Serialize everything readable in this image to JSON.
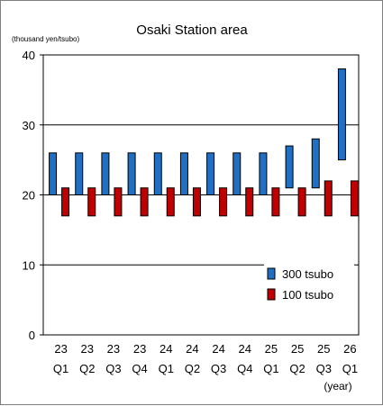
{
  "chart_data": {
    "type": "bar",
    "subtype": "floating-range",
    "title": "Osaki Station area",
    "ylabel": "(thousand yen/tsubo)",
    "xlabel": "(year)",
    "ylim": [
      0,
      40
    ],
    "yticks": [
      0,
      10,
      20,
      30,
      40
    ],
    "grid": true,
    "legend_position": "bottom-right",
    "categories": [
      {
        "year": "23",
        "quarter": "Q1"
      },
      {
        "year": "23",
        "quarter": "Q2"
      },
      {
        "year": "23",
        "quarter": "Q3"
      },
      {
        "year": "23",
        "quarter": "Q4"
      },
      {
        "year": "24",
        "quarter": "Q1"
      },
      {
        "year": "24",
        "quarter": "Q2"
      },
      {
        "year": "24",
        "quarter": "Q3"
      },
      {
        "year": "24",
        "quarter": "Q4"
      },
      {
        "year": "25",
        "quarter": "Q1"
      },
      {
        "year": "25",
        "quarter": "Q2"
      },
      {
        "year": "25",
        "quarter": "Q3"
      },
      {
        "year": "26",
        "quarter": "Q1"
      }
    ],
    "series": [
      {
        "name": "300 tsubo",
        "color": "#1f6fc4",
        "low": [
          20,
          20,
          20,
          20,
          20,
          20,
          20,
          20,
          20,
          21,
          21,
          25
        ],
        "high": [
          26,
          26,
          26,
          26,
          26,
          26,
          26,
          26,
          26,
          27,
          28,
          38
        ]
      },
      {
        "name": "100 tsubo",
        "color": "#c00000",
        "low": [
          17,
          17,
          17,
          17,
          17,
          17,
          17,
          17,
          17,
          17,
          17,
          17
        ],
        "high": [
          21,
          21,
          21,
          21,
          21,
          21,
          21,
          21,
          21,
          21,
          22,
          22
        ]
      }
    ]
  }
}
